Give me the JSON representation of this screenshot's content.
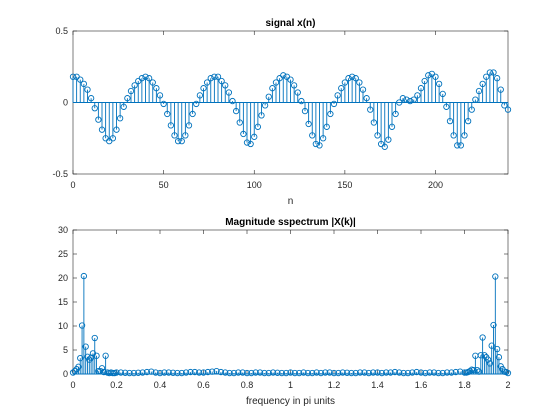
{
  "colors": {
    "series": "#0072bd",
    "axes": "#262626",
    "background": "#ffffff"
  },
  "chart_data": [
    {
      "type": "stem",
      "title": "signal x(n)",
      "xlabel": "n",
      "ylabel": "",
      "xlim": [
        0,
        240
      ],
      "ylim": [
        -0.5,
        0.5
      ],
      "xticks": [
        0,
        50,
        100,
        150,
        200
      ],
      "xtick_labels": [
        "0",
        "50",
        "100",
        "150",
        "200"
      ],
      "yticks": [
        -0.5,
        0,
        0.5
      ],
      "ytick_labels": [
        "-0.5",
        "0",
        "0.5"
      ],
      "grid": false,
      "series": [
        {
          "x": [
            0,
            2,
            4,
            6,
            8,
            10,
            12,
            14,
            16,
            18,
            20,
            22,
            24,
            26,
            28,
            30,
            32,
            34,
            36,
            38,
            40,
            42,
            44,
            46,
            48,
            50,
            52,
            54,
            56,
            58,
            60,
            62,
            64,
            66,
            68,
            70,
            72,
            74,
            76,
            78,
            80,
            82,
            84,
            86,
            88,
            90,
            92,
            94,
            96,
            98,
            100,
            102,
            104,
            106,
            108,
            110,
            112,
            114,
            116,
            118,
            120,
            122,
            124,
            126,
            128,
            130,
            132,
            134,
            136,
            138,
            140,
            142,
            144,
            146,
            148,
            150,
            152,
            154,
            156,
            158,
            160,
            162,
            164,
            166,
            168,
            170,
            172,
            174,
            176,
            178,
            180,
            182,
            184,
            186,
            188,
            190,
            192,
            194,
            196,
            198,
            200,
            202,
            204,
            206,
            208,
            210,
            212,
            214,
            216,
            218,
            220,
            222,
            224,
            226,
            228,
            230,
            232,
            234,
            236,
            238,
            240
          ],
          "y": [
            0.18,
            0.18,
            0.16,
            0.13,
            0.09,
            0.03,
            -0.04,
            -0.12,
            -0.19,
            -0.25,
            -0.27,
            -0.25,
            -0.19,
            -0.11,
            -0.03,
            0.03,
            0.08,
            0.12,
            0.15,
            0.17,
            0.18,
            0.17,
            0.14,
            0.1,
            0.05,
            -0.01,
            -0.08,
            -0.16,
            -0.23,
            -0.27,
            -0.27,
            -0.23,
            -0.16,
            -0.08,
            -0.01,
            0.05,
            0.1,
            0.14,
            0.17,
            0.18,
            0.18,
            0.15,
            0.12,
            0.07,
            0.01,
            -0.06,
            -0.14,
            -0.22,
            -0.28,
            -0.29,
            -0.24,
            -0.17,
            -0.09,
            -0.02,
            0.04,
            0.1,
            0.14,
            0.17,
            0.19,
            0.18,
            0.16,
            0.12,
            0.07,
            0.01,
            -0.06,
            -0.15,
            -0.23,
            -0.29,
            -0.3,
            -0.25,
            -0.17,
            -0.08,
            -0.01,
            0.05,
            0.1,
            0.14,
            0.17,
            0.18,
            0.17,
            0.14,
            0.09,
            0.03,
            -0.05,
            -0.14,
            -0.23,
            -0.29,
            -0.31,
            -0.26,
            -0.17,
            -0.08,
            0.0,
            0.03,
            0.02,
            0.01,
            0.02,
            0.05,
            0.1,
            0.15,
            0.19,
            0.2,
            0.18,
            0.13,
            0.06,
            -0.03,
            -0.13,
            -0.23,
            -0.3,
            -0.3,
            -0.23,
            -0.13,
            -0.05,
            0.02,
            0.08,
            0.13,
            0.18,
            0.21,
            0.21,
            0.17,
            0.09,
            -0.02,
            -0.05
          ]
        }
      ]
    },
    {
      "type": "stem",
      "title": "Magnitude sspectrum |X(k)|",
      "xlabel": "frequency in pi units",
      "ylabel": "",
      "xlim": [
        0,
        2
      ],
      "ylim": [
        0,
        30
      ],
      "xticks": [
        0,
        0.2,
        0.4,
        0.6,
        0.8,
        1,
        1.2,
        1.4,
        1.6,
        1.8,
        2
      ],
      "xtick_labels": [
        "0",
        "0.2",
        "0.4",
        "0.6",
        "0.8",
        "1",
        "1.2",
        "1.4",
        "1.6",
        "1.8",
        "2"
      ],
      "yticks": [
        0,
        5,
        10,
        15,
        20,
        25,
        30
      ],
      "ytick_labels": [
        "0",
        "5",
        "10",
        "15",
        "20",
        "25",
        "30"
      ],
      "grid": false,
      "series": [
        {
          "x": [
            0.0,
            0.0083,
            0.0167,
            0.025,
            0.0333,
            0.0417,
            0.05,
            0.0583,
            0.0667,
            0.075,
            0.0833,
            0.0917,
            0.1,
            0.1083,
            0.1167,
            0.125,
            0.1333,
            0.1417,
            0.15,
            0.1583,
            0.1667,
            0.175,
            0.1833,
            0.1917,
            0.2,
            0.22,
            0.24,
            0.26,
            0.28,
            0.3,
            0.32,
            0.34,
            0.36,
            0.38,
            0.4,
            0.42,
            0.44,
            0.46,
            0.48,
            0.5,
            0.52,
            0.54,
            0.56,
            0.58,
            0.6,
            0.62,
            0.64,
            0.66,
            0.68,
            0.7,
            0.72,
            0.74,
            0.76,
            0.78,
            0.8,
            0.82,
            0.84,
            0.86,
            0.88,
            0.9,
            0.92,
            0.94,
            0.96,
            0.98,
            1.0,
            1.02,
            1.04,
            1.06,
            1.08,
            1.1,
            1.12,
            1.14,
            1.16,
            1.18,
            1.2,
            1.22,
            1.24,
            1.26,
            1.28,
            1.3,
            1.32,
            1.34,
            1.36,
            1.38,
            1.4,
            1.42,
            1.44,
            1.46,
            1.48,
            1.5,
            1.52,
            1.54,
            1.56,
            1.58,
            1.6,
            1.62,
            1.64,
            1.66,
            1.68,
            1.7,
            1.72,
            1.74,
            1.76,
            1.78,
            1.8,
            1.8083,
            1.8167,
            1.825,
            1.8333,
            1.8417,
            1.85,
            1.8583,
            1.8667,
            1.875,
            1.8833,
            1.8917,
            1.9,
            1.9083,
            1.9167,
            1.925,
            1.9333,
            1.9417,
            1.95,
            1.9583,
            1.9667,
            1.975,
            1.9833,
            1.9917,
            2.0
          ],
          "y": [
            0.3,
            0.6,
            1.0,
            1.5,
            3.3,
            10.1,
            20.4,
            5.7,
            3.6,
            3.0,
            3.4,
            4.3,
            7.5,
            3.8,
            0.6,
            0.6,
            1.2,
            0.4,
            3.8,
            0.3,
            0.2,
            0.3,
            0.2,
            0.2,
            0.3,
            0.3,
            0.25,
            0.2,
            0.2,
            0.25,
            0.3,
            0.4,
            0.5,
            0.3,
            0.2,
            0.3,
            0.3,
            0.25,
            0.2,
            0.2,
            0.3,
            0.4,
            0.4,
            0.3,
            0.3,
            0.4,
            0.5,
            0.6,
            0.4,
            0.3,
            0.2,
            0.2,
            0.3,
            0.3,
            0.2,
            0.2,
            0.3,
            0.3,
            0.2,
            0.2,
            0.3,
            0.25,
            0.2,
            0.2,
            0.3,
            0.2,
            0.2,
            0.3,
            0.2,
            0.2,
            0.3,
            0.2,
            0.3,
            0.3,
            0.2,
            0.2,
            0.3,
            0.25,
            0.2,
            0.2,
            0.3,
            0.3,
            0.2,
            0.3,
            0.3,
            0.2,
            0.3,
            0.3,
            0.4,
            0.3,
            0.2,
            0.2,
            0.3,
            0.4,
            0.3,
            0.2,
            0.3,
            0.3,
            0.2,
            0.2,
            0.3,
            0.3,
            0.4,
            0.5,
            0.3,
            0.3,
            0.4,
            0.6,
            0.9,
            0.8,
            3.8,
            0.8,
            0.5,
            3.9,
            7.6,
            3.9,
            3.5,
            3.0,
            2.2,
            5.9,
            10.2,
            20.3,
            5.2,
            3.5,
            1.6,
            1.0,
            0.5,
            0.4,
            0.2
          ]
        }
      ]
    }
  ]
}
